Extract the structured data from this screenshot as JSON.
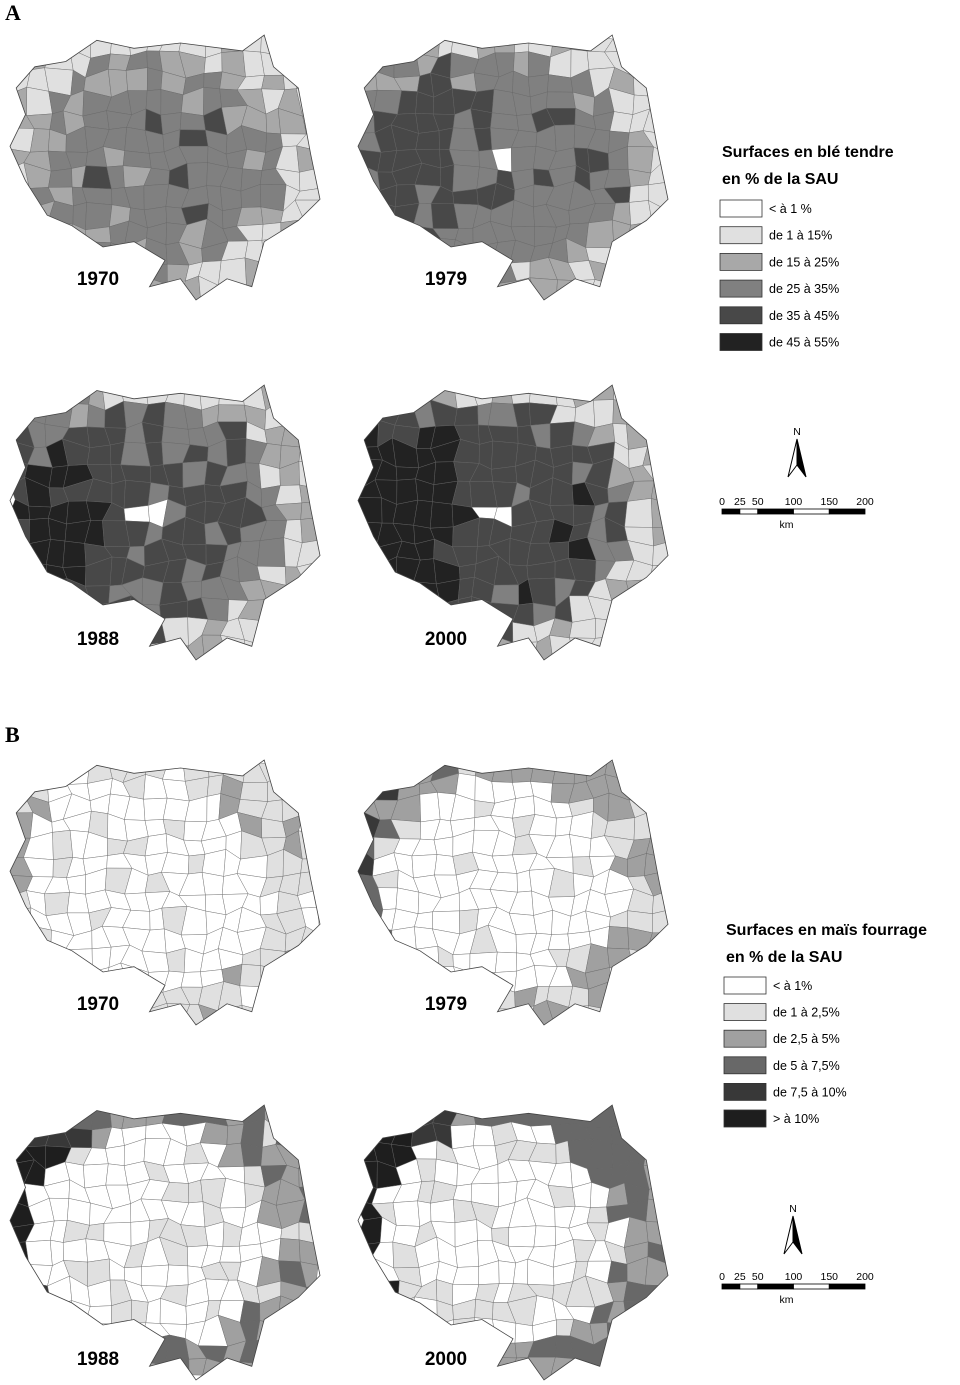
{
  "panels": [
    {
      "label": "A",
      "maps": [
        "1970",
        "1979",
        "1988",
        "2000"
      ],
      "legend": {
        "title_lines": [
          "Surfaces en blé tendre",
          "en % de la SAU"
        ],
        "items": [
          {
            "label": "< à 1 %",
            "color": "#ffffff"
          },
          {
            "label": "de 1 à 15%",
            "color": "#e0e0e0"
          },
          {
            "label": "de 15 à 25%",
            "color": "#a8a8a8"
          },
          {
            "label": "de 25 à 35%",
            "color": "#808080"
          },
          {
            "label": "de 35 à 45%",
            "color": "#484848"
          },
          {
            "label": "de 45 à 55%",
            "color": "#222222"
          }
        ]
      },
      "north": "N",
      "scale": {
        "ticks": [
          0,
          25,
          50,
          100,
          150,
          200
        ],
        "unit": "km"
      }
    },
    {
      "label": "B",
      "maps": [
        "1970",
        "1979",
        "1988",
        "2000"
      ],
      "legend": {
        "title_lines": [
          "Surfaces en maïs fourrage",
          "en % de la SAU"
        ],
        "items": [
          {
            "label": "< à 1%",
            "color": "#ffffff"
          },
          {
            "label": "de 1 à 2,5%",
            "color": "#e0e0e0"
          },
          {
            "label": "de 2,5 à 5%",
            "color": "#a0a0a0"
          },
          {
            "label": "de 5 à 7,5%",
            "color": "#686868"
          },
          {
            "label": "de 7,5 à 10%",
            "color": "#383838"
          },
          {
            "label": "> à 10%",
            "color": "#1e1e1e"
          }
        ]
      },
      "north": "N",
      "scale": {
        "ticks": [
          0,
          25,
          50,
          100,
          150,
          200
        ],
        "unit": "km"
      }
    }
  ]
}
